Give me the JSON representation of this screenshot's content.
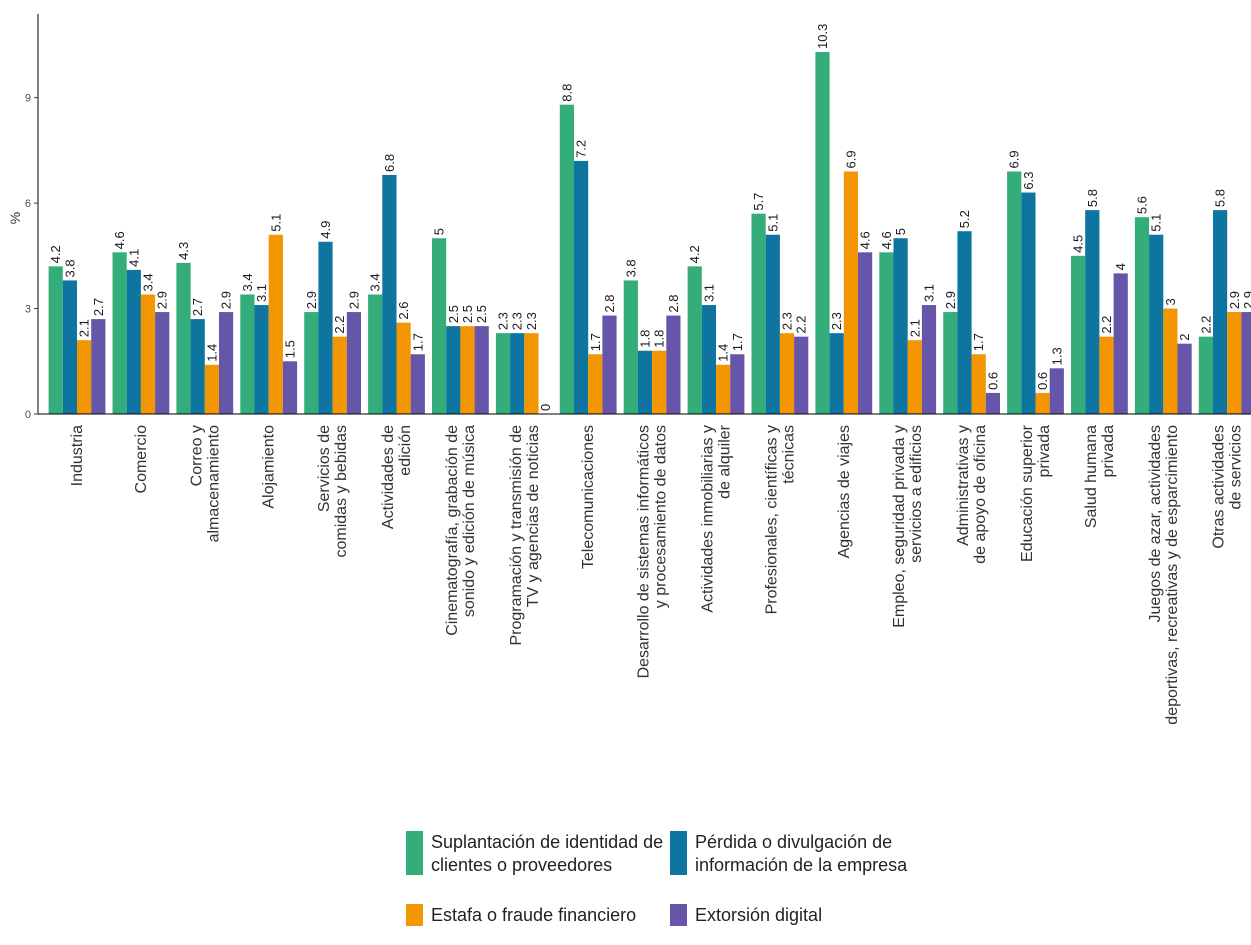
{
  "chart_data": {
    "type": "bar",
    "ylabel": "%",
    "ylim": [
      0,
      11
    ],
    "yticks": [
      0,
      3,
      6,
      9
    ],
    "grid": false,
    "legend_position": "bottom",
    "categories": [
      [
        "Industria"
      ],
      [
        "Comercio"
      ],
      [
        "Correo y",
        "almacenamiento"
      ],
      [
        "Alojamiento"
      ],
      [
        "Servicios de",
        "comidas y bebidas"
      ],
      [
        "Actividades de",
        "edición"
      ],
      [
        "Cinematografía, grabación de",
        "sonido y edición de música"
      ],
      [
        "Programación y transmisión de",
        "TV y agencias de noticias"
      ],
      [
        "Telecomunicaciones"
      ],
      [
        "Desarrollo de sistemas informáticos",
        "y procesamiento de datos"
      ],
      [
        "Actividades inmobiliarias y",
        "de alquiler"
      ],
      [
        "Profesionales, científicas y",
        "técnicas"
      ],
      [
        "Agencias de viajes"
      ],
      [
        "Empleo, seguridad privada y",
        "servicios a edificios"
      ],
      [
        "Administrativas y",
        "de apoyo de oficina"
      ],
      [
        "Educación superior",
        "privada"
      ],
      [
        "Salud humana",
        "privada"
      ],
      [
        "Juegos de azar, actividades",
        "deportivas, recreativas y de esparcimiento"
      ],
      [
        "Otras actividades",
        "de servicios"
      ]
    ],
    "series": [
      {
        "name": "Suplantación de identidad de clientes o proveedores",
        "legend_lines": [
          "Suplantación de identidad de",
          "clientes o proveedores"
        ],
        "color": "#35AD7B",
        "values": [
          4.2,
          4.6,
          4.3,
          3.4,
          2.9,
          3.4,
          5,
          2.3,
          8.8,
          3.8,
          4.2,
          5.7,
          10.3,
          4.6,
          2.9,
          6.9,
          4.5,
          5.6,
          2.2
        ]
      },
      {
        "name": "Pérdida o divulgación de información de la empresa",
        "legend_lines": [
          "Pérdida o divulgación de",
          "información de la empresa"
        ],
        "color": "#0E74A0",
        "values": [
          3.8,
          4.1,
          2.7,
          3.1,
          4.9,
          6.8,
          2.5,
          2.3,
          7.2,
          1.8,
          3.1,
          5.1,
          2.3,
          5,
          5.2,
          6.3,
          5.8,
          5.1,
          5.8
        ]
      },
      {
        "name": "Estafa o fraude financiero",
        "legend_lines": [
          "Estafa o fraude financiero"
        ],
        "color": "#F29602",
        "values": [
          2.1,
          3.4,
          1.4,
          5.1,
          2.2,
          2.6,
          2.5,
          2.3,
          1.7,
          1.8,
          1.4,
          2.3,
          6.9,
          2.1,
          1.7,
          0.6,
          2.2,
          3,
          2.9
        ]
      },
      {
        "name": "Extorsión digital",
        "legend_lines": [
          "Extorsión digital"
        ],
        "color": "#6655A8",
        "values": [
          2.7,
          2.9,
          2.9,
          1.5,
          2.9,
          1.7,
          2.5,
          0,
          2.8,
          2.8,
          1.7,
          2.2,
          4.6,
          3.1,
          0.6,
          1.3,
          4,
          2,
          2.9
        ]
      }
    ]
  }
}
